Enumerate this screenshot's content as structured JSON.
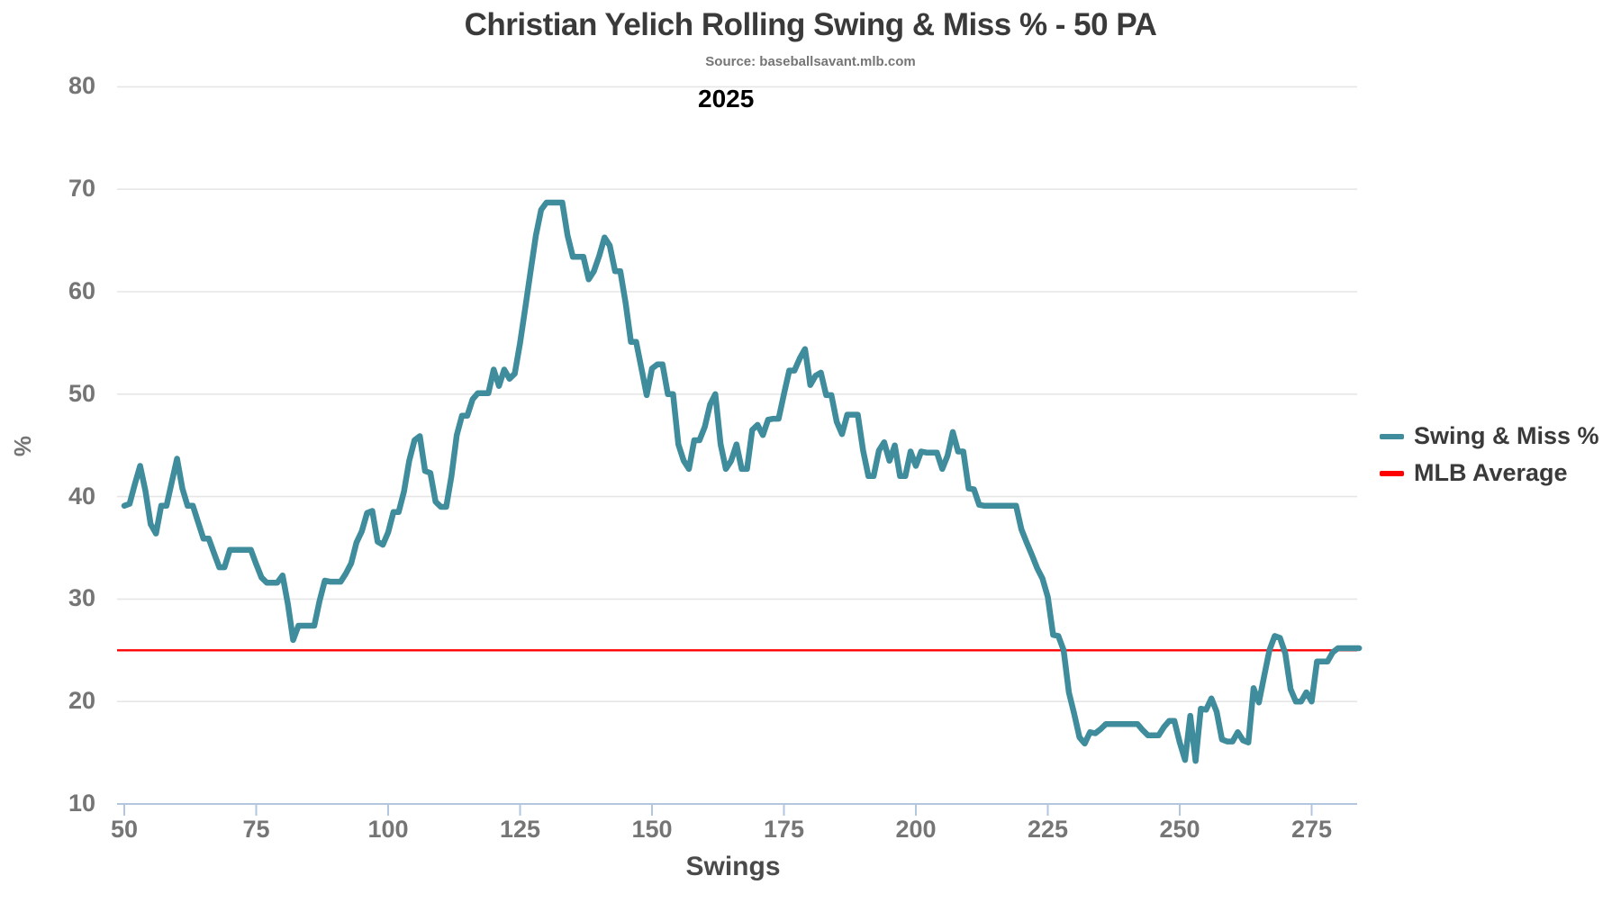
{
  "page": {
    "title": "Christian Yelich Rolling Swing & Miss % - 50 PA",
    "subtitle": "Source: baseballsavant.mlb.com",
    "year_annotation": "2025"
  },
  "axes": {
    "x_label": "Swings",
    "y_label": "%"
  },
  "legend": {
    "items": [
      {
        "label": "Swing & Miss %",
        "color": "#3e8c9c"
      },
      {
        "label": "MLB Average",
        "color": "#ff0000"
      }
    ]
  },
  "colors": {
    "line": "#3e8c9c",
    "average_line": "#ff0000",
    "grid_line": "#e6e6e6",
    "axis_line": "#b3c6e0",
    "tick_label": "#757575",
    "title_text": "#3a3a3a",
    "background": "#ffffff"
  },
  "chart_data": {
    "type": "line",
    "title": "Christian Yelich Rolling Swing & Miss % - 50 PA",
    "subtitle": "Source: baseballsavant.mlb.com",
    "annotation": "2025",
    "xlabel": "Swings",
    "ylabel": "%",
    "xlim": [
      50,
      284
    ],
    "ylim": [
      10,
      80
    ],
    "x_ticks": [
      50,
      75,
      100,
      125,
      150,
      175,
      200,
      225,
      250,
      275
    ],
    "y_ticks": [
      10,
      20,
      30,
      40,
      50,
      60,
      70,
      80
    ],
    "grid": "horizontal",
    "legend_position": "right",
    "series": [
      {
        "name": "Swing & Miss %",
        "type": "line",
        "color": "#3e8c9c",
        "x_start": 50,
        "x_step": 1,
        "values": [
          39.1,
          39.3,
          41.2,
          43.0,
          40.6,
          37.3,
          36.4,
          39.1,
          39.1,
          41.4,
          43.7,
          40.8,
          39.1,
          39.1,
          37.5,
          35.9,
          35.9,
          34.5,
          33.1,
          33.1,
          34.8,
          34.8,
          34.8,
          34.8,
          34.8,
          33.4,
          32.1,
          31.6,
          31.6,
          31.6,
          32.3,
          29.5,
          26.0,
          27.4,
          27.4,
          27.4,
          27.4,
          29.8,
          31.8,
          31.7,
          31.7,
          31.7,
          32.5,
          33.5,
          35.5,
          36.6,
          38.4,
          38.6,
          35.6,
          35.3,
          36.5,
          38.5,
          38.5,
          40.5,
          43.5,
          45.5,
          45.9,
          42.5,
          42.3,
          39.5,
          39.0,
          39.0,
          42.0,
          46.0,
          47.9,
          47.9,
          49.5,
          50.1,
          50.1,
          50.1,
          52.4,
          50.8,
          52.4,
          51.5,
          52.0,
          55.0,
          58.5,
          62.0,
          65.5,
          68.0,
          68.7,
          68.7,
          68.7,
          68.7,
          65.5,
          63.4,
          63.4,
          63.4,
          61.2,
          62.0,
          63.5,
          65.3,
          64.5,
          62.0,
          62.0,
          58.9,
          55.1,
          55.1,
          52.5,
          49.9,
          52.5,
          52.9,
          52.9,
          50.0,
          50.0,
          45.1,
          43.5,
          42.7,
          45.5,
          45.5,
          46.8,
          49.0,
          50.0,
          45.1,
          42.7,
          43.5,
          45.1,
          42.7,
          42.7,
          46.5,
          47.0,
          46.0,
          47.5,
          47.6,
          47.6,
          50.0,
          52.3,
          52.3,
          53.5,
          54.4,
          50.9,
          51.8,
          52.1,
          49.9,
          49.9,
          47.3,
          46.1,
          48.0,
          48.0,
          48.0,
          44.5,
          42.0,
          42.0,
          44.5,
          45.3,
          43.5,
          45.0,
          42.0,
          42.0,
          44.4,
          43.0,
          44.4,
          44.3,
          44.3,
          44.3,
          42.7,
          44.0,
          46.3,
          44.4,
          44.4,
          40.8,
          40.7,
          39.2,
          39.1,
          39.1,
          39.1,
          39.1,
          39.1,
          39.1,
          39.1,
          36.8,
          35.5,
          34.3,
          33.0,
          32.0,
          30.2,
          26.5,
          26.4,
          25.0,
          20.9,
          18.8,
          16.5,
          15.9,
          17.0,
          16.9,
          17.3,
          17.8,
          17.8,
          17.8,
          17.8,
          17.8,
          17.8,
          17.8,
          17.2,
          16.7,
          16.7,
          16.7,
          17.5,
          18.1,
          18.1,
          16.0,
          14.3,
          18.6,
          14.2,
          19.3,
          19.2,
          20.3,
          19.0,
          16.3,
          16.1,
          16.1,
          17.0,
          16.2,
          16.0,
          21.3,
          19.9,
          22.5,
          25.0,
          26.4,
          26.2,
          24.7,
          21.2,
          20.0,
          20.0,
          20.9,
          20.0,
          23.9,
          23.9,
          23.9,
          24.8,
          25.2,
          25.2,
          25.2,
          25.2,
          25.2
        ]
      },
      {
        "name": "MLB Average",
        "type": "hline",
        "color": "#ff0000",
        "value": 25
      }
    ]
  }
}
